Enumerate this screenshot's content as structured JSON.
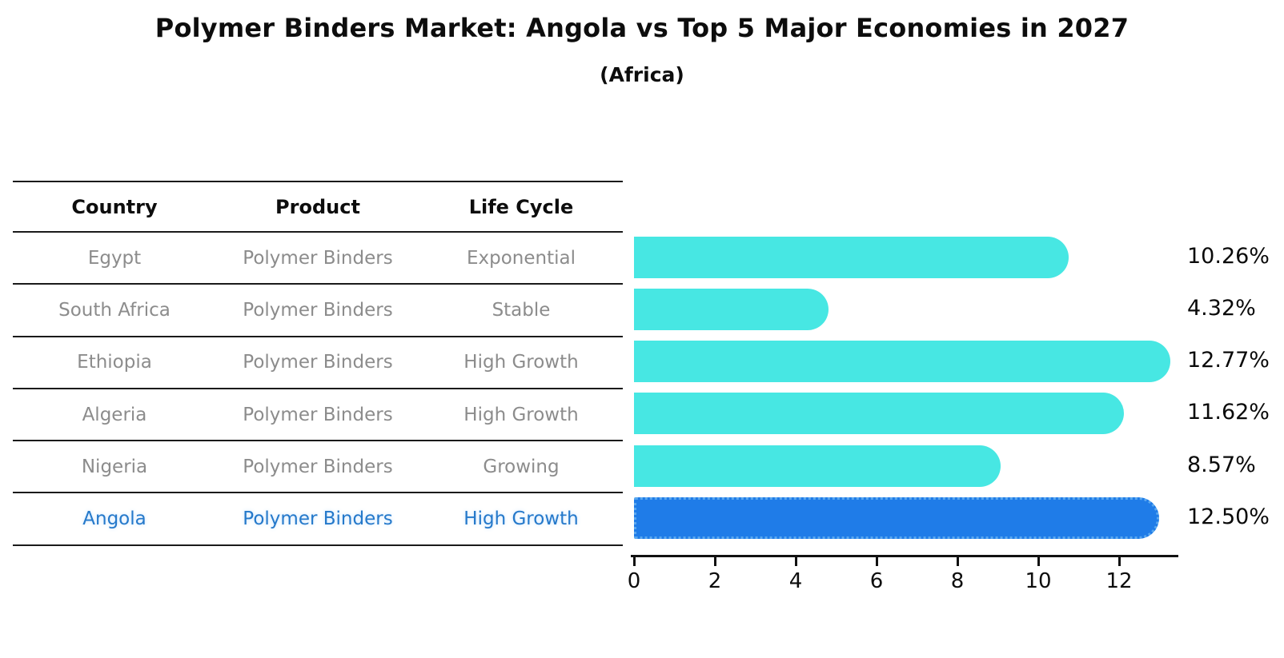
{
  "title": "Polymer Binders Market: Angola vs Top 5 Major Economies in 2027",
  "subtitle": "(Africa)",
  "table": {
    "headers": [
      "Country",
      "Product",
      "Life Cycle"
    ],
    "rows": [
      {
        "country": "Egypt",
        "product": "Polymer Binders",
        "life_cycle": "Exponential",
        "highlight": false
      },
      {
        "country": "South Africa",
        "product": "Polymer Binders",
        "life_cycle": "Stable",
        "highlight": false
      },
      {
        "country": "Ethiopia",
        "product": "Polymer Binders",
        "life_cycle": "High Growth",
        "highlight": false
      },
      {
        "country": "Algeria",
        "product": "Polymer Binders",
        "life_cycle": "High Growth",
        "highlight": false
      },
      {
        "country": "Nigeria",
        "product": "Polymer Binders",
        "life_cycle": "Growing",
        "highlight": false
      },
      {
        "country": "Angola",
        "product": "Polymer Binders",
        "life_cycle": "High Growth",
        "highlight": true
      }
    ]
  },
  "chart_data": {
    "type": "bar",
    "orientation": "horizontal",
    "title": "Polymer Binders Market: Angola vs Top 5 Major Economies in 2027",
    "subtitle": "(Africa)",
    "categories": [
      "Egypt",
      "South Africa",
      "Ethiopia",
      "Algeria",
      "Nigeria",
      "Angola"
    ],
    "values": [
      10.26,
      4.32,
      12.77,
      11.62,
      8.57,
      12.5
    ],
    "value_labels": [
      "10.26%",
      "4.32%",
      "12.77%",
      "11.62%",
      "8.57%",
      "12.50%"
    ],
    "xlabel": "",
    "ylabel": "",
    "xlim": [
      0,
      13.3
    ],
    "x_ticks": [
      0,
      2,
      4,
      6,
      8,
      10,
      12
    ],
    "grid": false,
    "legend": null,
    "highlight_index": 5,
    "colors": {
      "bar": "#47e7e3",
      "highlight_bar": "#1f7ce8",
      "highlight_edge": "#5aa8ef",
      "highlight_text": "#2579ca",
      "text_gray": "#8c8c8c",
      "text_black": "#0d0d0d",
      "axis": "#111111"
    }
  }
}
